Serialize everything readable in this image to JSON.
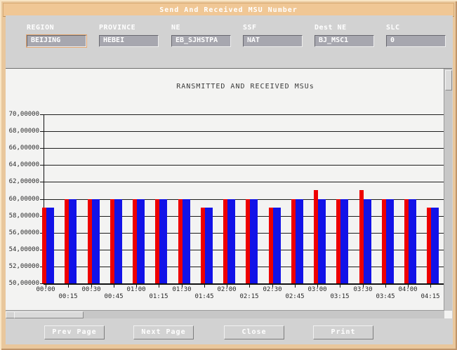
{
  "window": {
    "title": "Send And Received MSU Number",
    "titlebar_color": "#f0c795",
    "frame_color": "#e9c79c"
  },
  "form": {
    "fields": [
      {
        "name": "region",
        "label": "REGION",
        "value": "BEIJING",
        "focused": true
      },
      {
        "name": "province",
        "label": "PROVINCE",
        "value": "HEBEI",
        "focused": false
      },
      {
        "name": "ne",
        "label": "NE",
        "value": "EB_SJHSTPA",
        "focused": false
      },
      {
        "name": "ssf",
        "label": "SSF",
        "value": "NAT",
        "focused": false
      },
      {
        "name": "dest-ne",
        "label": "Dest NE",
        "value": "BJ_MSC1",
        "focused": false
      },
      {
        "name": "slc",
        "label": "SLC",
        "value": "0",
        "focused": false
      }
    ]
  },
  "buttons": [
    {
      "name": "prev-page",
      "label": "Prev Page"
    },
    {
      "name": "next-page",
      "label": "Next Page"
    },
    {
      "name": "close",
      "label": "Close"
    },
    {
      "name": "print",
      "label": "Print"
    }
  ],
  "chart_data": {
    "type": "bar",
    "title": "RANSMITTED AND RECEIVED MSUs",
    "categories": [
      "00:00",
      "00:15",
      "00:30",
      "00:45",
      "01:00",
      "01:15",
      "01:30",
      "01:45",
      "02:00",
      "02:15",
      "02:30",
      "02:45",
      "03:00",
      "03:15",
      "03:30",
      "03:45",
      "04:00",
      "04:15"
    ],
    "series": [
      {
        "name": "transmitted",
        "color": "#ee0000",
        "values": [
          5900000,
          6000000,
          6000000,
          6000000,
          6000000,
          6000000,
          6000000,
          5900000,
          6000000,
          6000000,
          5900000,
          6000000,
          6100000,
          6000000,
          6100000,
          6000000,
          6000000,
          5900000
        ]
      },
      {
        "name": "received",
        "color": "#1212e8",
        "values": [
          5900000,
          6000000,
          6000000,
          6000000,
          6000000,
          6000000,
          6000000,
          5900000,
          6000000,
          6000000,
          5900000,
          6000000,
          6000000,
          6000000,
          6000000,
          6000000,
          6000000,
          5900000
        ]
      }
    ],
    "ylim": [
      5000000,
      7000000
    ],
    "ytick_step": 200000,
    "ytick_labels": [
      "70,00000",
      "68,00000",
      "66,00000",
      "64,00000",
      "62,00000",
      "60,00000",
      "58,00000",
      "56,00000",
      "54,00000",
      "52,00000",
      "50,00000"
    ],
    "partial_last_xlabel": "0",
    "grid": true,
    "legend": "none"
  }
}
